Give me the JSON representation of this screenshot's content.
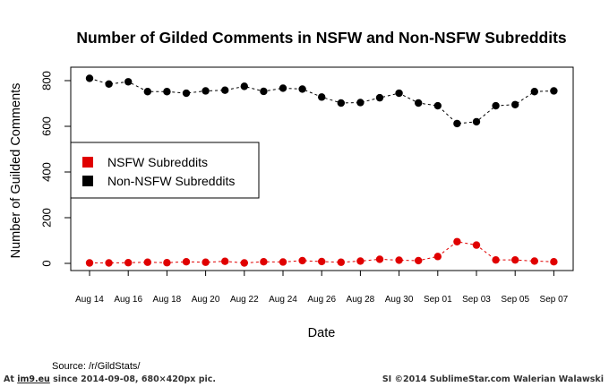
{
  "chart_data": {
    "type": "scatter",
    "title": "Number of Gilded Comments in NSFW and Non-NSFW Subreddits",
    "xlabel": "Date",
    "ylabel": "Number of Guilded Comments",
    "ylim": [
      0,
      850
    ],
    "yticks": [
      0,
      200,
      400,
      600,
      800
    ],
    "x": [
      "Aug 14",
      "Aug 15",
      "Aug 16",
      "Aug 17",
      "Aug 18",
      "Aug 19",
      "Aug 20",
      "Aug 21",
      "Aug 22",
      "Aug 23",
      "Aug 24",
      "Aug 25",
      "Aug 26",
      "Aug 27",
      "Aug 28",
      "Aug 29",
      "Aug 30",
      "Aug 31",
      "Sep 01",
      "Sep 02",
      "Sep 03",
      "Sep 04",
      "Sep 05",
      "Sep 06",
      "Sep 07"
    ],
    "xticks": [
      "Aug 14",
      "Aug 16",
      "Aug 18",
      "Aug 20",
      "Aug 22",
      "Aug 24",
      "Aug 26",
      "Aug 28",
      "Aug 30",
      "Sep 01",
      "Sep 03",
      "Sep 05",
      "Sep 07"
    ],
    "series": [
      {
        "name": "NSFW Subreddits",
        "color": "#e00000",
        "values": [
          2,
          2,
          3,
          5,
          3,
          7,
          5,
          9,
          2,
          7,
          6,
          12,
          8,
          5,
          10,
          18,
          14,
          12,
          30,
          95,
          80,
          15,
          15,
          10,
          7
        ]
      },
      {
        "name": "Non-NSFW Subreddits",
        "color": "#000000",
        "values": [
          810,
          785,
          795,
          752,
          752,
          745,
          755,
          758,
          775,
          753,
          767,
          763,
          728,
          702,
          704,
          725,
          745,
          702,
          690,
          612,
          620,
          690,
          695,
          752,
          755
        ]
      }
    ],
    "legend": "left",
    "grid": false
  },
  "source": "Source: /r/GildStats/",
  "footer": {
    "left_prefix": "At ",
    "left_link": "im9.eu",
    "left_suffix": " since 2014-09-08, 680×420px pic.",
    "right": "SI ©2014 SublimeStar.com Walerian Walawski"
  }
}
